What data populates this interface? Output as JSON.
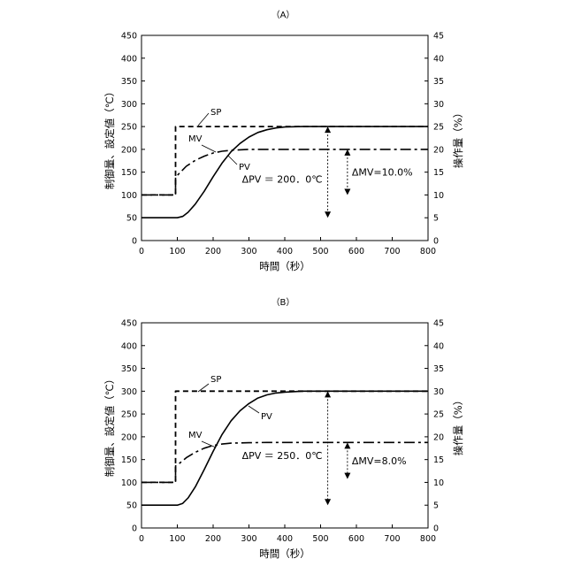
{
  "chart_data": [
    {
      "type": "line",
      "panel_label": "（A）",
      "xlabel": "時間（秒）",
      "ylabel_left": "制御量、設定値（℃）",
      "ylabel_right": "操作量（%）",
      "xlim": [
        0,
        800
      ],
      "ylim_left": [
        0,
        450
      ],
      "ylim_right": [
        0,
        45
      ],
      "x_ticks": [
        "0",
        "100",
        "200",
        "300",
        "400",
        "500",
        "600",
        "700",
        "800"
      ],
      "y_ticks_left": [
        "0",
        "50",
        "100",
        "150",
        "200",
        "250",
        "300",
        "350",
        "400",
        "450"
      ],
      "y_ticks_right": [
        "0",
        "5",
        "10",
        "15",
        "20",
        "25",
        "30",
        "35",
        "40",
        "45"
      ],
      "grid": false,
      "series": [
        {
          "name": "SP",
          "axis": "left",
          "style": "dashed",
          "x": [
            0,
            95,
            95,
            800
          ],
          "y": [
            100,
            100,
            250,
            250
          ]
        },
        {
          "name": "PV",
          "axis": "left",
          "style": "solid",
          "x": [
            0,
            100,
            115,
            130,
            150,
            175,
            200,
            225,
            250,
            275,
            300,
            325,
            350,
            375,
            400,
            450,
            500,
            800
          ],
          "y": [
            50,
            50,
            53,
            62,
            80,
            108,
            140,
            170,
            195,
            213,
            227,
            237,
            243,
            247,
            249,
            250,
            250,
            250
          ]
        },
        {
          "name": "MV",
          "axis": "right",
          "style": "dashdot",
          "x": [
            0,
            95,
            95,
            100,
            125,
            150,
            175,
            200,
            225,
            250,
            300,
            350,
            400,
            800
          ],
          "y": [
            10,
            10,
            14,
            14.3,
            16.3,
            17.6,
            18.5,
            19.2,
            19.6,
            19.8,
            20,
            20,
            20,
            20
          ]
        }
      ],
      "annotations": [
        {
          "text": "ΔPV ＝ 200．0℃",
          "x_from": 520,
          "y_from": 50,
          "y_to": 250,
          "axis": "left"
        },
        {
          "text": "ΔMV=10.0%",
          "x_from": 575,
          "y_from": 10,
          "y_to": 20,
          "axis": "right"
        }
      ]
    },
    {
      "type": "line",
      "panel_label": "（B）",
      "xlabel": "時間（秒）",
      "ylabel_left": "制御量、設定値（℃）",
      "ylabel_right": "操作量（%）",
      "xlim": [
        0,
        800
      ],
      "ylim_left": [
        0,
        450
      ],
      "ylim_right": [
        0,
        45
      ],
      "x_ticks": [
        "0",
        "100",
        "200",
        "300",
        "400",
        "500",
        "600",
        "700",
        "800"
      ],
      "y_ticks_left": [
        "0",
        "50",
        "100",
        "150",
        "200",
        "250",
        "300",
        "350",
        "400",
        "450"
      ],
      "y_ticks_right": [
        "0",
        "5",
        "10",
        "15",
        "20",
        "25",
        "30",
        "35",
        "40",
        "45"
      ],
      "grid": false,
      "series": [
        {
          "name": "SP",
          "axis": "left",
          "style": "dashed",
          "x": [
            0,
            95,
            95,
            800
          ],
          "y": [
            100,
            100,
            300,
            300
          ]
        },
        {
          "name": "PV",
          "axis": "left",
          "style": "solid",
          "x": [
            0,
            100,
            115,
            130,
            150,
            175,
            200,
            225,
            250,
            275,
            300,
            325,
            350,
            375,
            400,
            450,
            500,
            800
          ],
          "y": [
            50,
            50,
            54,
            66,
            90,
            128,
            168,
            205,
            235,
            257,
            273,
            285,
            292,
            296,
            298,
            300,
            300,
            300
          ]
        },
        {
          "name": "MV",
          "axis": "right",
          "style": "dashdot",
          "x": [
            0,
            95,
            95,
            100,
            125,
            150,
            175,
            200,
            225,
            250,
            300,
            350,
            400,
            800
          ],
          "y": [
            10,
            10,
            13.6,
            13.8,
            15.4,
            16.6,
            17.5,
            18.1,
            18.4,
            18.6,
            18.7,
            18.75,
            18.75,
            18.75
          ]
        }
      ],
      "annotations": [
        {
          "text": "ΔPV ＝ 250．0℃",
          "x_from": 520,
          "y_from": 50,
          "y_to": 300,
          "axis": "left"
        },
        {
          "text": "ΔMV=8.0%",
          "x_from": 575,
          "y_from": 10.75,
          "y_to": 18.75,
          "axis": "right"
        }
      ]
    }
  ]
}
